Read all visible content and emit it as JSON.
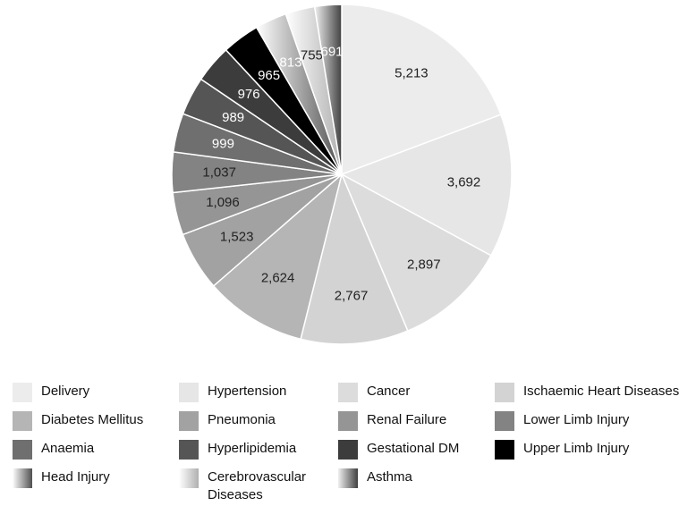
{
  "chart_data": {
    "type": "pie",
    "categories": [
      "Delivery",
      "Hypertension",
      "Cancer",
      "Ischaemic Heart Diseases",
      "Diabetes Mellitus",
      "Pneumonia",
      "Renal Failure",
      "Lower Limb Injury",
      "Anaemia",
      "Hyperlipidemia",
      "Gestational DM",
      "Upper Limb Injury",
      "Head Injury",
      "Cerebrovascular Diseases",
      "Asthma"
    ],
    "values": [
      5213,
      3692,
      2897,
      2767,
      2624,
      1523,
      1096,
      1037,
      999,
      989,
      976,
      965,
      813,
      755,
      691
    ],
    "value_labels": [
      "5,213",
      "3,692",
      "2,897",
      "2,767",
      "2,624",
      "1,523",
      "1,096",
      "1,037",
      "999",
      "989",
      "976",
      "965",
      "813",
      "755",
      "691"
    ],
    "colors": [
      "#ececec",
      "#e6e6e6",
      "#dcdcdc",
      "#d3d3d3",
      "#b5b5b5",
      "#a2a2a2",
      "#959595",
      "#838383",
      "#6f6f6f",
      "#555555",
      "#3c3c3c",
      "#000000",
      [
        "#ffffff",
        "#505050"
      ],
      [
        "#ffffff",
        "#b0b0b0"
      ],
      [
        "#f0f0f0",
        "#404040"
      ]
    ],
    "legend": "bottom"
  }
}
